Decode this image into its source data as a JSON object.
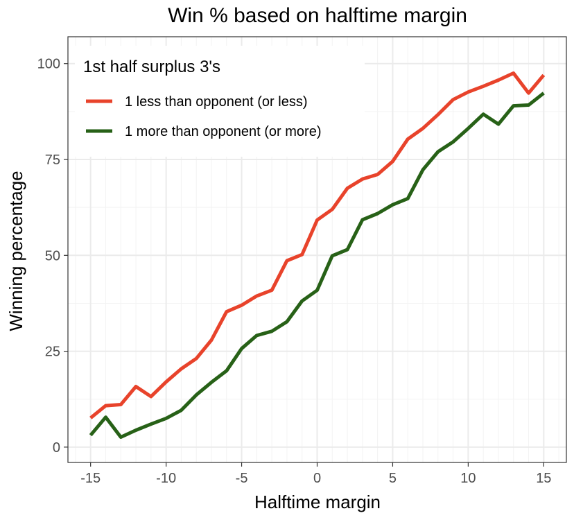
{
  "chart_data": {
    "type": "line",
    "title": "Win % based on halftime margin",
    "xlabel": "Halftime margin",
    "ylabel": "Winning percentage",
    "xlim": [
      -16.5,
      16.5
    ],
    "ylim": [
      -4.0,
      107.0
    ],
    "x_ticks": [
      -15,
      -10,
      -5,
      0,
      5,
      10,
      15
    ],
    "x_tick_labels": [
      "-15",
      "-10",
      "-5",
      "0",
      "5",
      "10",
      "15"
    ],
    "y_ticks": [
      0,
      25,
      50,
      75,
      100
    ],
    "y_tick_labels": [
      "0",
      "25",
      "50",
      "75",
      "100"
    ],
    "grid": true,
    "legend": {
      "title": "1st half surplus 3's",
      "position": "top-left"
    },
    "x": [
      -15,
      -14,
      -13,
      -12,
      -11,
      -10,
      -9,
      -8,
      -7,
      -6,
      -5,
      -4,
      -3,
      -2,
      -1,
      0,
      1,
      2,
      3,
      4,
      5,
      6,
      7,
      8,
      9,
      10,
      11,
      12,
      13,
      14,
      15
    ],
    "series": [
      {
        "name": "1 less than opponent (or less)",
        "color": "#e8432b",
        "values": [
          7.6,
          10.8,
          11.1,
          15.8,
          13.2,
          17.0,
          20.4,
          23.1,
          27.9,
          35.3,
          37.0,
          39.4,
          40.9,
          48.6,
          50.2,
          59.2,
          62.0,
          67.5,
          69.9,
          71.1,
          74.5,
          80.3,
          83.1,
          86.7,
          90.6,
          92.6,
          94.1,
          95.7,
          97.5,
          92.3,
          97.0
        ]
      },
      {
        "name": "1 more than opponent (or more)",
        "color": "#276117",
        "values": [
          3.1,
          7.8,
          2.6,
          4.4,
          6.0,
          7.5,
          9.6,
          13.6,
          16.9,
          19.9,
          25.7,
          29.1,
          30.2,
          32.7,
          38.1,
          40.9,
          49.9,
          51.5,
          59.3,
          60.9,
          63.2,
          64.8,
          72.3,
          77.0,
          79.6,
          83.1,
          86.8,
          84.2,
          89.0,
          89.2,
          92.3
        ]
      }
    ]
  }
}
